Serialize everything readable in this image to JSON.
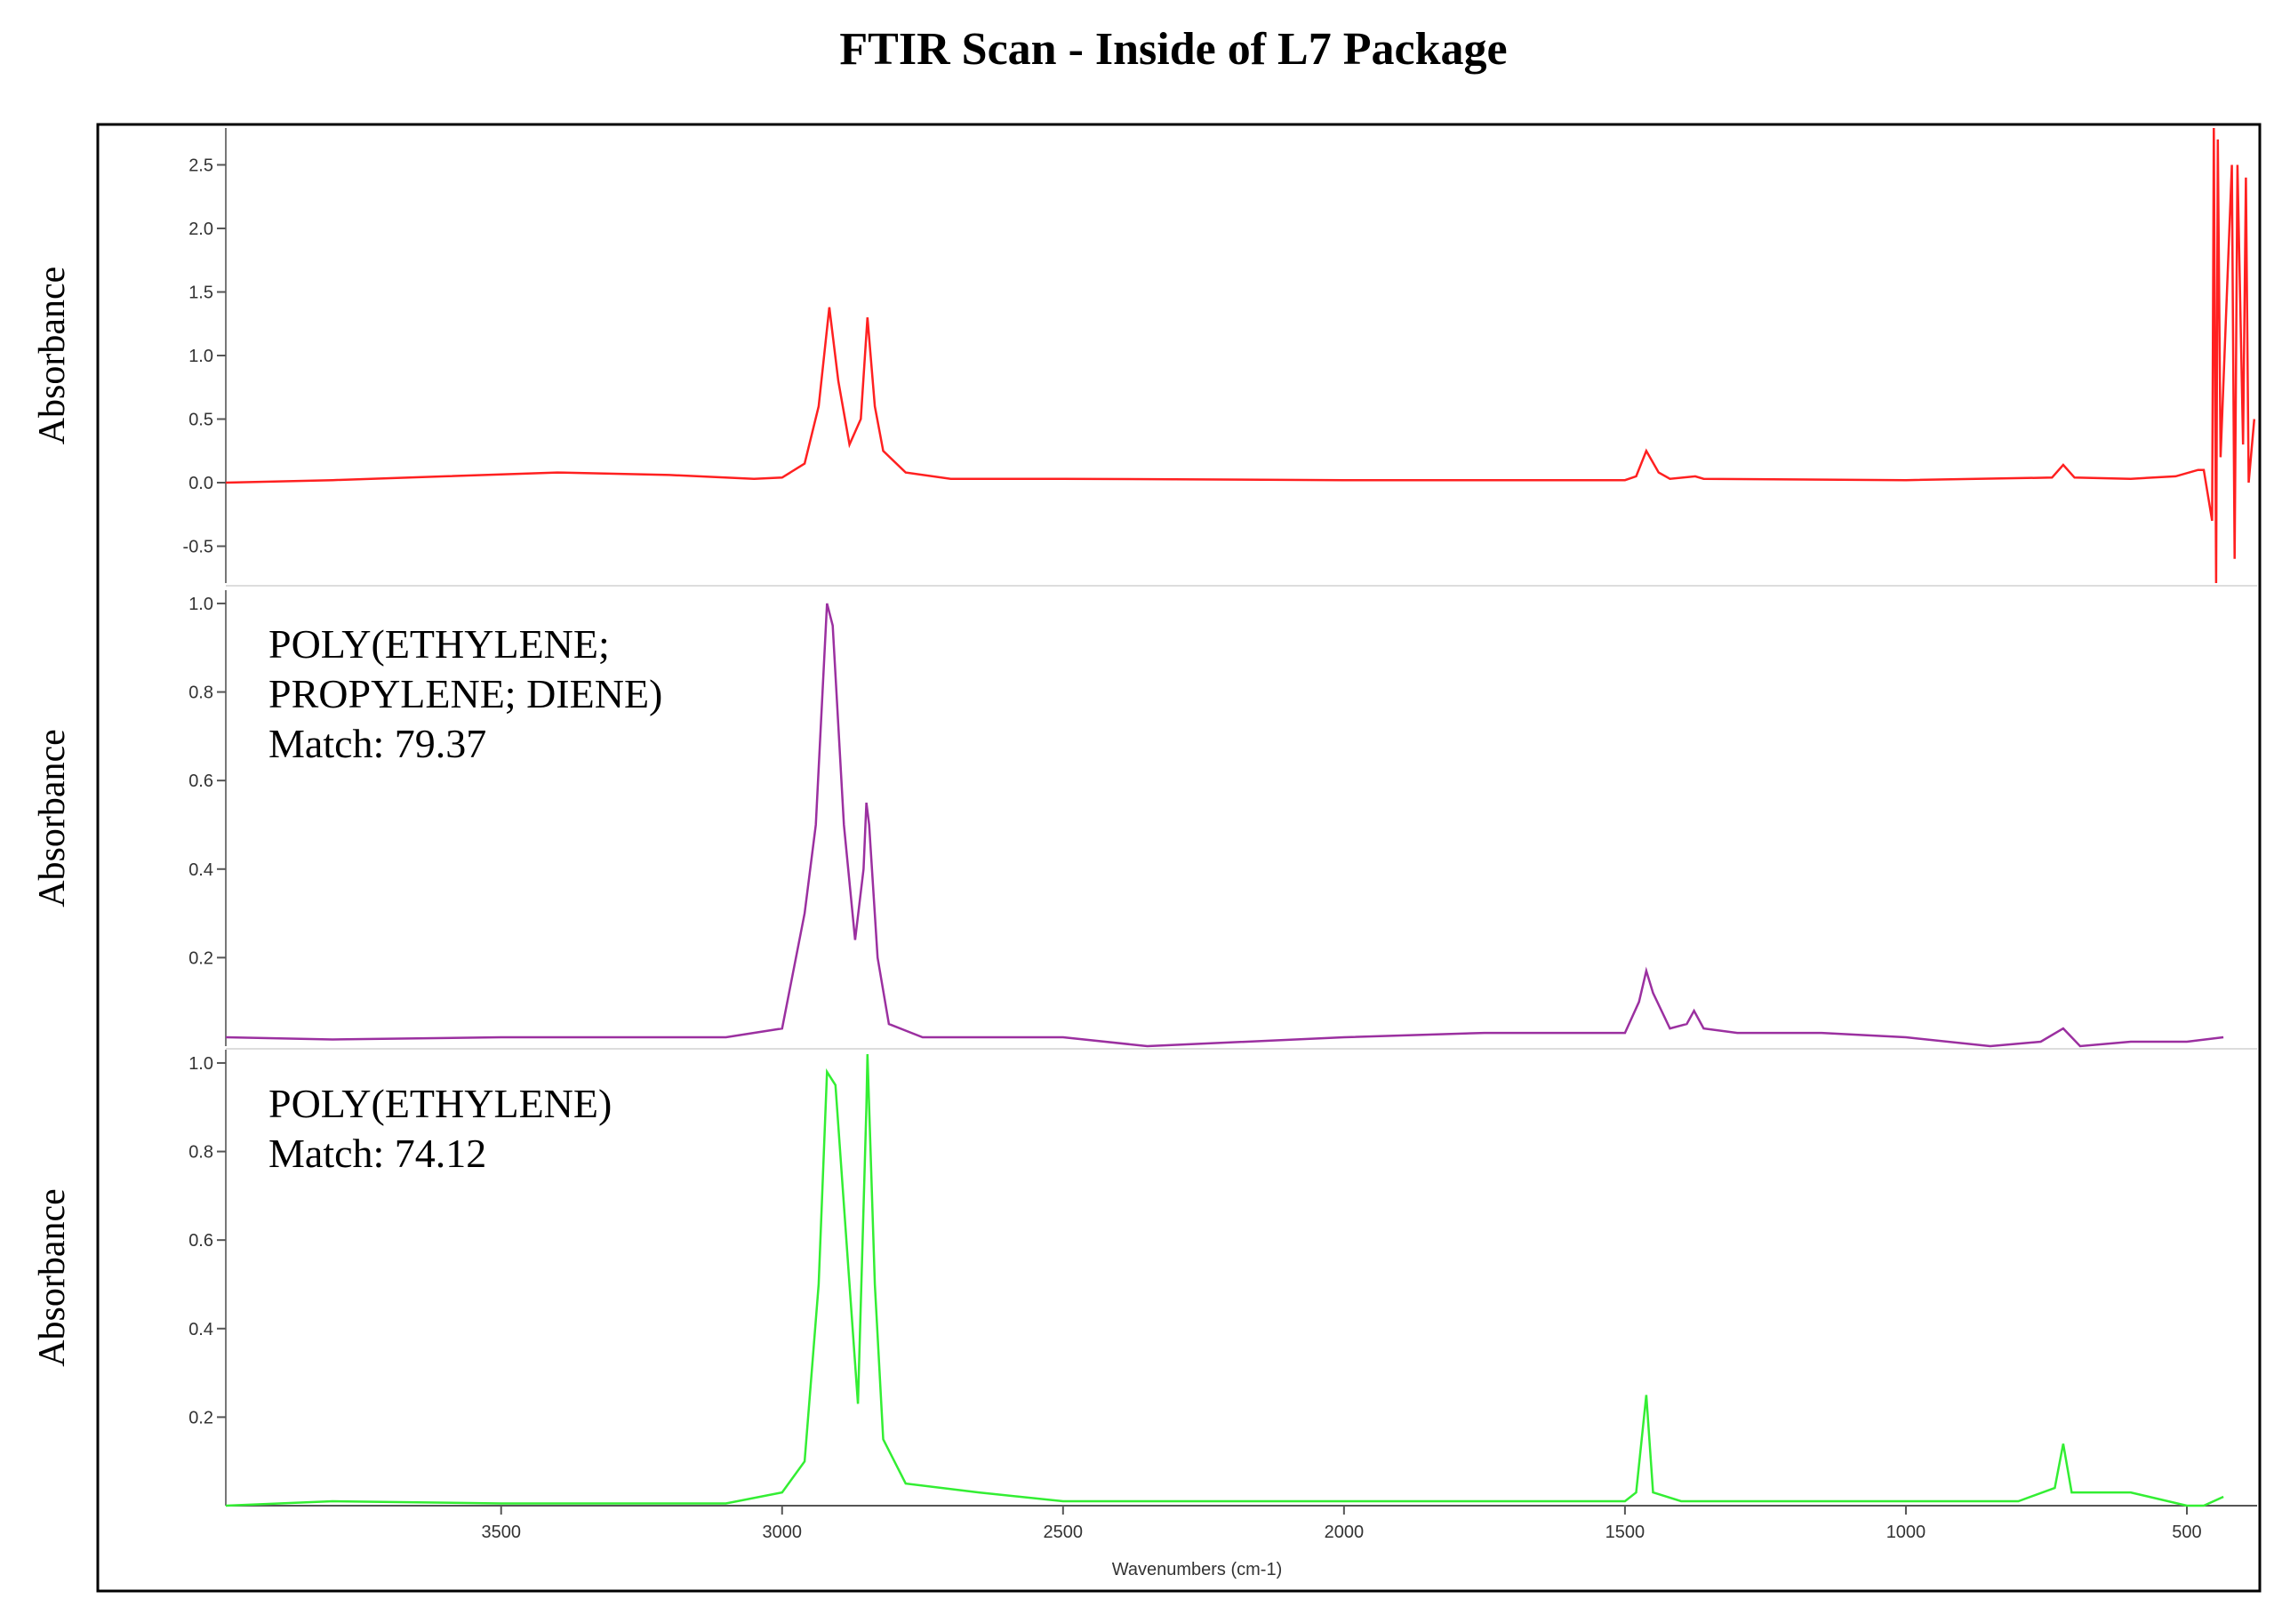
{
  "chart_data": [
    {
      "type": "line",
      "title": "FTIR Scan - Inside of L7 Package",
      "ylabel": "Absorbance",
      "xlim": [
        3990,
        375
      ],
      "ylim": [
        -0.79,
        2.79
      ],
      "yticks": [
        {
          "value": 2.5,
          "label": "2.5"
        },
        {
          "value": 2,
          "label": "2.0"
        },
        1.5,
        {
          "value": 1,
          "label": "1.0"
        },
        0.5,
        {
          "value": 0,
          "label": "0.0"
        },
        -0.5
      ],
      "x": [
        3990,
        3800,
        3600,
        3400,
        3200,
        3050,
        3000,
        2960,
        2935,
        2916,
        2900,
        2880,
        2860,
        2848,
        2835,
        2820,
        2780,
        2700,
        2500,
        2000,
        1500,
        1480,
        1462,
        1440,
        1420,
        1375,
        1360,
        1000,
        740,
        720,
        700,
        600,
        520,
        480,
        470,
        455,
        452,
        448,
        445,
        440,
        420,
        415,
        410,
        400,
        395,
        390,
        380
      ],
      "series": [
        {
          "color": "#ff2020",
          "values": [
            0.0,
            0.02,
            0.05,
            0.08,
            0.06,
            0.03,
            0.04,
            0.15,
            0.6,
            1.38,
            0.8,
            0.3,
            0.5,
            1.3,
            0.6,
            0.25,
            0.08,
            0.03,
            0.03,
            0.02,
            0.02,
            0.05,
            0.25,
            0.08,
            0.03,
            0.05,
            0.03,
            0.02,
            0.04,
            0.14,
            0.04,
            0.03,
            0.05,
            0.1,
            0.1,
            -0.3,
            2.79,
            -0.79,
            2.7,
            0.2,
            2.5,
            -0.6,
            2.5,
            0.3,
            2.4,
            0.0,
            0.5
          ]
        }
      ]
    },
    {
      "type": "line",
      "ylabel": "Absorbance",
      "annotations": [
        "POLY(ETHYLENE;",
        "PROPYLENE; DIENE)",
        "Match: 79.37"
      ],
      "xlim": [
        3990,
        375
      ],
      "ylim": [
        0,
        1.03
      ],
      "yticks": [
        {
          "value": 1,
          "label": "1.0"
        },
        0.8,
        0.6,
        0.4,
        0.2
      ],
      "x": [
        3990,
        3800,
        3500,
        3100,
        3000,
        2960,
        2940,
        2920,
        2910,
        2890,
        2870,
        2855,
        2850,
        2845,
        2830,
        2810,
        2750,
        2500,
        2350,
        2000,
        1750,
        1500,
        1475,
        1462,
        1450,
        1420,
        1390,
        1377,
        1360,
        1300,
        1150,
        1000,
        850,
        760,
        720,
        690,
        600,
        500,
        435
      ],
      "series": [
        {
          "color": "#9b30a0",
          "values": [
            0.02,
            0.015,
            0.02,
            0.02,
            0.04,
            0.3,
            0.5,
            1.0,
            0.95,
            0.5,
            0.24,
            0.4,
            0.55,
            0.5,
            0.2,
            0.05,
            0.02,
            0.02,
            0.0,
            0.02,
            0.03,
            0.03,
            0.1,
            0.17,
            0.12,
            0.04,
            0.05,
            0.08,
            0.04,
            0.03,
            0.03,
            0.02,
            0.0,
            0.01,
            0.04,
            0.0,
            0.01,
            0.01,
            0.02
          ]
        }
      ]
    },
    {
      "type": "line",
      "ylabel": "Absorbance",
      "annotations": [
        "POLY(ETHYLENE)",
        "Match: 74.12"
      ],
      "xlabel": "Wavenumbers (cm-1)",
      "xlim": [
        3990,
        375
      ],
      "ylim": [
        0,
        1.03
      ],
      "xticks": [
        3500,
        3000,
        2500,
        2000,
        1500,
        1000,
        500
      ],
      "yticks": [
        {
          "value": 1,
          "label": "1.0"
        },
        0.8,
        0.6,
        0.4,
        0.2
      ],
      "x": [
        3990,
        3800,
        3500,
        3100,
        3000,
        2960,
        2935,
        2920,
        2905,
        2880,
        2865,
        2850,
        2848,
        2835,
        2820,
        2780,
        2650,
        2500,
        1500,
        1480,
        1462,
        1450,
        1400,
        800,
        735,
        720,
        705,
        600,
        500,
        470,
        435
      ],
      "series": [
        {
          "color": "#33ee33",
          "values": [
            0.0,
            0.01,
            0.005,
            0.005,
            0.03,
            0.1,
            0.5,
            0.98,
            0.95,
            0.5,
            0.23,
            0.9,
            1.02,
            0.5,
            0.15,
            0.05,
            0.03,
            0.01,
            0.01,
            0.03,
            0.25,
            0.03,
            0.01,
            0.01,
            0.04,
            0.14,
            0.03,
            0.03,
            0.0,
            0.0,
            0.02
          ]
        }
      ]
    }
  ]
}
